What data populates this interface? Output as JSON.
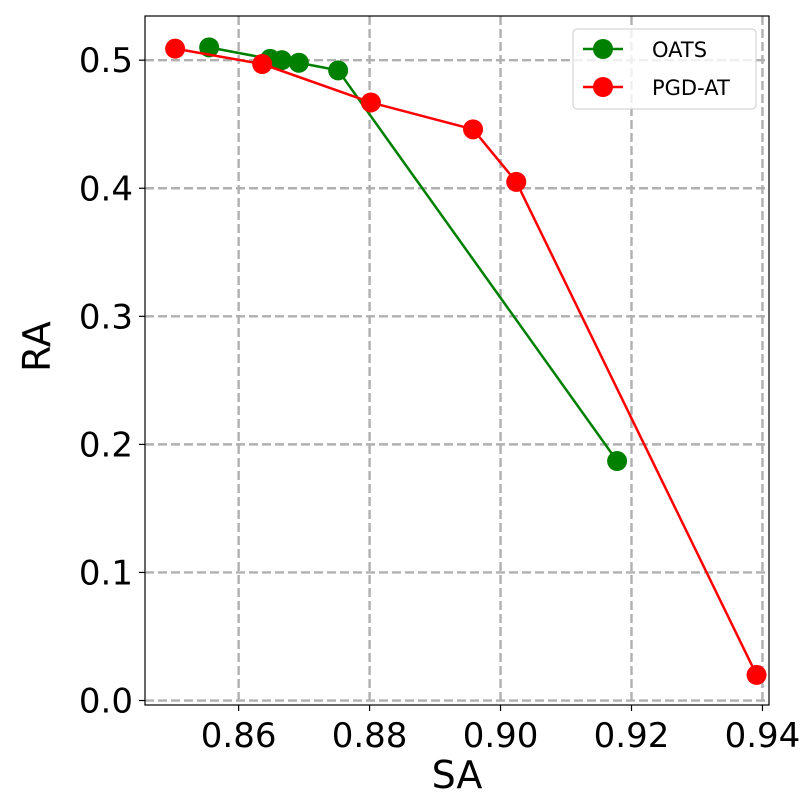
{
  "chart_data": {
    "type": "line",
    "title": "",
    "xlabel": "SA",
    "ylabel": "RA",
    "xlim": [
      0.8457,
      0.941
    ],
    "ylim": [
      -0.0035,
      0.5345
    ],
    "xticks": [
      0.86,
      0.88,
      0.9,
      0.92,
      0.94
    ],
    "xtick_labels": [
      "0.86",
      "0.88",
      "0.90",
      "0.92",
      "0.94"
    ],
    "yticks": [
      0.0,
      0.1,
      0.2,
      0.3,
      0.4,
      0.5
    ],
    "ytick_labels": [
      "0.0",
      "0.1",
      "0.2",
      "0.3",
      "0.4",
      "0.5"
    ],
    "grid": true,
    "legend_position": "top-right",
    "series": [
      {
        "name": "OATS",
        "color": "#008000",
        "marker": "circle",
        "x": [
          0.8555,
          0.8648,
          0.8666,
          0.8692,
          0.8752,
          0.9178
        ],
        "y": [
          0.51,
          0.501,
          0.5,
          0.498,
          0.492,
          0.187
        ]
      },
      {
        "name": "PGD-AT",
        "color": "#ff0000",
        "marker": "circle",
        "x": [
          0.8503,
          0.8636,
          0.8802,
          0.8958,
          0.9024,
          0.9391
        ],
        "y": [
          0.509,
          0.497,
          0.467,
          0.446,
          0.405,
          0.02
        ]
      }
    ]
  }
}
